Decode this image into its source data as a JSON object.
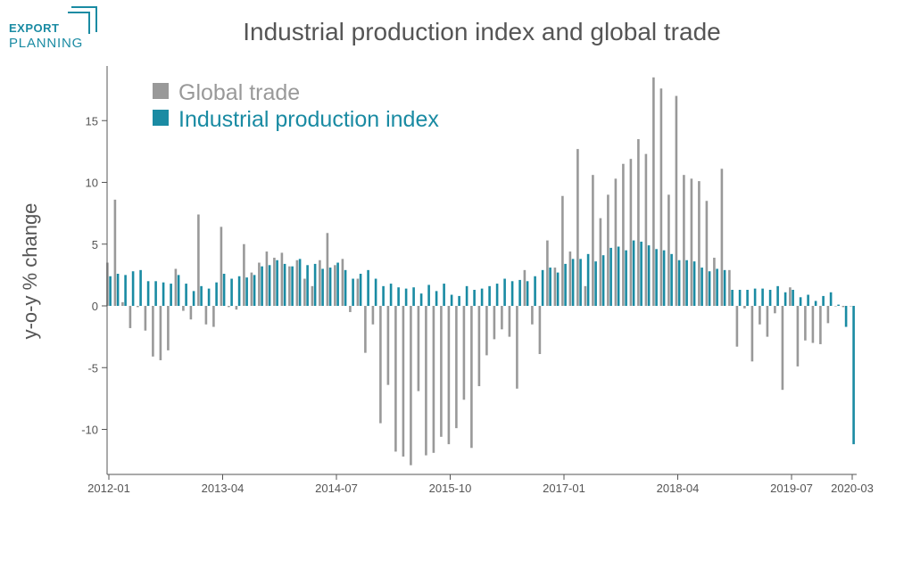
{
  "brand": {
    "line1": "EXPORT",
    "line2": "PLANNING",
    "color": "#1a8ba3"
  },
  "chart_data": {
    "type": "bar",
    "title": "Industrial production index and global trade",
    "ylabel": "y-o-y % change",
    "xlabel": "",
    "ylim": [
      -13,
      19
    ],
    "yticks": [
      -10,
      -5,
      0,
      5,
      10,
      15
    ],
    "x_tick_labels": [
      "2012-01",
      "2013-04",
      "2014-07",
      "2015-10",
      "2017-01",
      "2018-04",
      "2019-07",
      "2020-03"
    ],
    "legend_position": "top-left",
    "start_month": "2012-01",
    "end_month": "2020-03",
    "series": [
      {
        "name": "Global trade",
        "color": "#999999",
        "values": [
          3.5,
          8.6,
          0.3,
          -1.8,
          -0.1,
          -2.0,
          -4.1,
          -4.4,
          -3.6,
          3.0,
          -0.4,
          -1.1,
          7.4,
          -1.5,
          -1.7,
          6.4,
          -0.1,
          -0.3,
          5.0,
          2.7,
          3.5,
          4.4,
          3.9,
          4.3,
          3.2,
          3.7,
          2.2,
          1.6,
          3.7,
          5.9,
          3.3,
          3.8,
          -0.5,
          2.2,
          -3.8,
          -1.5,
          -9.5,
          -6.4,
          -11.8,
          -12.2,
          -12.9,
          -6.9,
          -12.1,
          -11.9,
          -10.6,
          -11.2,
          -9.9,
          -7.6,
          -11.5,
          -6.5,
          -4.0,
          -2.7,
          -1.9,
          -2.5,
          -6.7,
          2.9,
          -1.5,
          -3.9,
          5.3,
          3.1,
          8.9,
          4.4,
          12.7,
          1.6,
          10.6,
          7.1,
          9.0,
          10.3,
          11.5,
          11.9,
          13.5,
          12.3,
          18.5,
          17.6,
          9.0,
          17.0,
          10.6,
          10.3,
          10.1,
          8.5,
          3.9,
          11.1,
          2.9,
          -3.3,
          -0.2,
          -4.5,
          -1.5,
          -2.5,
          -0.6,
          -6.8,
          1.5,
          -4.9,
          -2.8,
          -3.0,
          -3.1,
          -1.4,
          0.0,
          -0.1,
          0.0
        ]
      },
      {
        "name": "Industrial production index",
        "color": "#1a8ba3",
        "values": [
          2.4,
          2.6,
          2.5,
          2.8,
          2.9,
          2.0,
          2.0,
          1.9,
          1.8,
          2.5,
          1.8,
          1.2,
          1.6,
          1.4,
          1.9,
          2.6,
          2.2,
          2.4,
          2.3,
          2.5,
          3.2,
          3.3,
          3.7,
          3.4,
          3.2,
          3.8,
          3.3,
          3.4,
          3.0,
          3.1,
          3.5,
          2.9,
          2.2,
          2.6,
          2.9,
          2.2,
          1.6,
          1.8,
          1.5,
          1.4,
          1.5,
          1.0,
          1.7,
          1.2,
          1.8,
          0.9,
          0.8,
          1.6,
          1.3,
          1.4,
          1.6,
          1.8,
          2.2,
          2.0,
          2.1,
          2.0,
          2.4,
          2.9,
          3.1,
          2.7,
          3.4,
          3.8,
          3.8,
          4.2,
          3.6,
          4.1,
          4.7,
          4.8,
          4.5,
          5.3,
          5.2,
          4.9,
          4.6,
          4.5,
          4.2,
          3.7,
          3.7,
          3.6,
          3.1,
          2.8,
          3.0,
          2.9,
          1.3,
          1.3,
          1.3,
          1.4,
          1.4,
          1.3,
          1.6,
          1.1,
          1.3,
          0.7,
          0.9,
          0.4,
          0.8,
          1.1,
          0.1,
          -1.7,
          -11.2
        ]
      }
    ]
  }
}
